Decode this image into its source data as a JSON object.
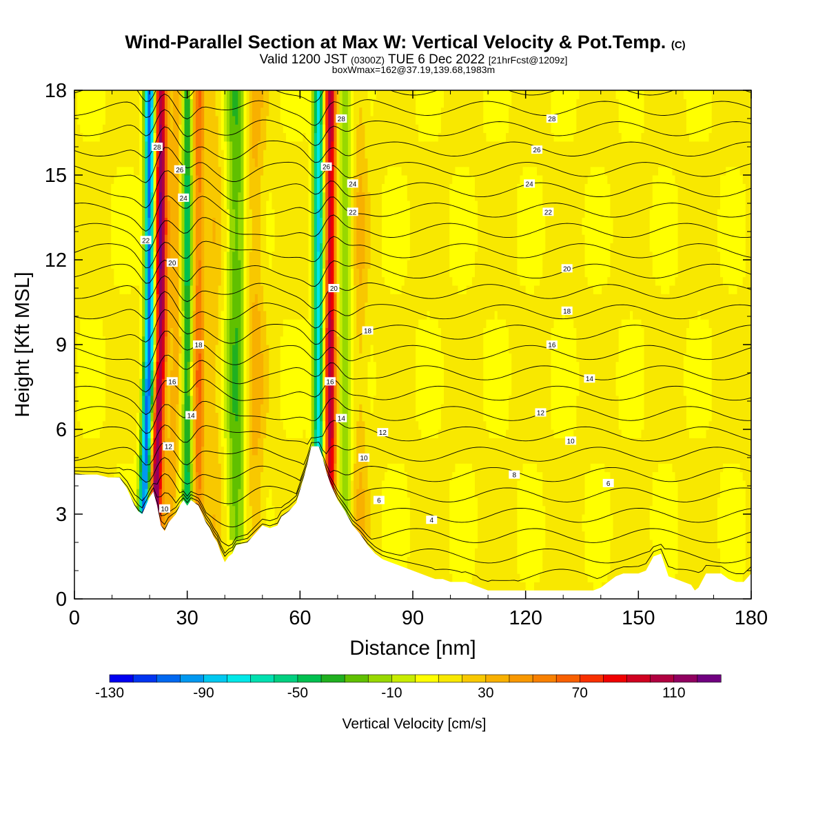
{
  "chart_data": {
    "type": "heatmap",
    "title": "Wind-Parallel Section at Max W: Vertical Velocity & Pot.Temp.",
    "title_mark": "(C)",
    "subtitle": {
      "valid_prefix": "Valid 1200 JST",
      "utc": "(0300Z)",
      "valid_date": "TUE 6 Dec 2022",
      "forecast": "[21hrFcst@1209z]"
    },
    "box_info": "boxWmax=162@37.19,139.68,1983m",
    "xlabel": "Distance [nm]",
    "ylabel": "Height [Kft MSL]",
    "xlim": [
      0,
      180
    ],
    "ylim": [
      0,
      18
    ],
    "x_ticks": [
      "0",
      "30",
      "60",
      "90",
      "120",
      "150",
      "180"
    ],
    "y_ticks": [
      "0",
      "3",
      "6",
      "9",
      "12",
      "15",
      "18"
    ],
    "colorbar": {
      "label": "Vertical Velocity [cm/s]",
      "range": [
        -130,
        130
      ],
      "ticks": [
        "-130",
        "-90",
        "-50",
        "-10",
        "30",
        "70",
        "110"
      ],
      "colors": [
        "#0000f0",
        "#0034f0",
        "#0068f0",
        "#0098f0",
        "#00c8f0",
        "#00e8e8",
        "#00e0b0",
        "#00d080",
        "#00c050",
        "#20b020",
        "#60c000",
        "#98d800",
        "#c8ec00",
        "#ffff00",
        "#f8e800",
        "#f8c800",
        "#f8b000",
        "#f89800",
        "#f88000",
        "#f86000",
        "#f83000",
        "#f00000",
        "#d00020",
        "#b00040",
        "#900060",
        "#700080"
      ]
    },
    "terrain": [
      [
        0,
        4.4
      ],
      [
        6,
        4.4
      ],
      [
        9,
        4.3
      ],
      [
        12,
        4.3
      ],
      [
        13,
        4.1
      ],
      [
        14,
        3.9
      ],
      [
        15,
        3.6
      ],
      [
        16,
        3.3
      ],
      [
        17,
        3.1
      ],
      [
        18,
        3.0
      ],
      [
        19,
        3.3
      ],
      [
        20,
        3.6
      ],
      [
        21,
        3.8
      ],
      [
        22,
        3.3
      ],
      [
        23,
        2.6
      ],
      [
        24,
        2.4
      ],
      [
        25,
        2.7
      ],
      [
        27,
        3.0
      ],
      [
        28,
        3.3
      ],
      [
        29,
        3.5
      ],
      [
        30,
        3.3
      ],
      [
        31,
        3.5
      ],
      [
        33,
        3.3
      ],
      [
        34,
        3.0
      ],
      [
        35,
        2.7
      ],
      [
        36,
        2.5
      ],
      [
        37,
        2.2
      ],
      [
        38,
        2.0
      ],
      [
        39,
        1.6
      ],
      [
        40,
        1.3
      ],
      [
        41,
        1.5
      ],
      [
        42,
        1.6
      ],
      [
        43,
        1.9
      ],
      [
        46,
        2.0
      ],
      [
        48,
        2.3
      ],
      [
        50,
        2.6
      ],
      [
        52,
        2.5
      ],
      [
        54,
        2.6
      ],
      [
        55,
        2.9
      ],
      [
        57,
        3.1
      ],
      [
        59,
        3.4
      ],
      [
        61,
        4.3
      ],
      [
        62,
        4.8
      ],
      [
        63,
        5.4
      ],
      [
        65,
        5.4
      ],
      [
        66,
        5.0
      ],
      [
        67,
        4.5
      ],
      [
        68,
        4.1
      ],
      [
        69,
        3.8
      ],
      [
        70,
        3.5
      ],
      [
        72,
        3.1
      ],
      [
        74,
        2.6
      ],
      [
        76,
        2.3
      ],
      [
        78,
        1.9
      ],
      [
        80,
        1.6
      ],
      [
        82,
        1.4
      ],
      [
        84,
        1.3
      ],
      [
        86,
        1.2
      ],
      [
        88,
        1.1
      ],
      [
        90,
        1.0
      ],
      [
        92,
        0.9
      ],
      [
        94,
        0.8
      ],
      [
        96,
        0.7
      ],
      [
        98,
        0.7
      ],
      [
        100,
        0.6
      ],
      [
        104,
        0.6
      ],
      [
        106,
        0.5
      ],
      [
        108,
        0.4
      ],
      [
        110,
        0.3
      ],
      [
        130,
        0.3
      ],
      [
        138,
        0.3
      ],
      [
        140,
        0.4
      ],
      [
        142,
        0.6
      ],
      [
        144,
        0.8
      ],
      [
        146,
        0.9
      ],
      [
        148,
        0.9
      ],
      [
        150,
        0.9
      ],
      [
        152,
        1.0
      ],
      [
        154,
        1.5
      ],
      [
        156,
        1.6
      ],
      [
        157,
        1.2
      ],
      [
        158,
        0.8
      ],
      [
        160,
        0.7
      ],
      [
        162,
        0.6
      ],
      [
        164,
        0.5
      ],
      [
        165,
        0.3
      ],
      [
        166,
        0.4
      ],
      [
        168,
        0.9
      ],
      [
        172,
        0.9
      ],
      [
        174,
        0.7
      ],
      [
        176,
        0.6
      ],
      [
        178,
        0.6
      ],
      [
        180,
        0.9
      ]
    ],
    "wave_columns": [
      {
        "x": 20,
        "width": 1.4,
        "w": -120
      },
      {
        "x": 23,
        "width": 1.6,
        "w": 105
      },
      {
        "x": 27,
        "width": 1.6,
        "w": 25
      },
      {
        "x": 30,
        "width": 1.4,
        "w": -55
      },
      {
        "x": 33,
        "width": 1.5,
        "w": 45
      },
      {
        "x": 37,
        "width": 2.0,
        "w": 15
      },
      {
        "x": 43,
        "width": 2.5,
        "w": -40
      },
      {
        "x": 48,
        "width": 2.5,
        "w": 20
      },
      {
        "x": 65,
        "width": 1.5,
        "w": -90
      },
      {
        "x": 68,
        "width": 1.6,
        "w": 90
      },
      {
        "x": 72,
        "width": 1.8,
        "w": -30
      },
      {
        "x": 76,
        "width": 2.0,
        "w": 15
      }
    ],
    "background_w": 12,
    "isentrope_labels": [
      {
        "text": "28",
        "x": 22,
        "y": 16.0
      },
      {
        "text": "26",
        "x": 28,
        "y": 15.2
      },
      {
        "text": "24",
        "x": 29,
        "y": 14.2
      },
      {
        "text": "22",
        "x": 19,
        "y": 12.7
      },
      {
        "text": "20",
        "x": 26,
        "y": 11.9
      },
      {
        "text": "18",
        "x": 33,
        "y": 9.0
      },
      {
        "text": "16",
        "x": 26,
        "y": 7.7
      },
      {
        "text": "14",
        "x": 31,
        "y": 6.5
      },
      {
        "text": "12",
        "x": 25,
        "y": 5.4
      },
      {
        "text": "10",
        "x": 24,
        "y": 3.2
      },
      {
        "text": "28",
        "x": 71,
        "y": 17.0
      },
      {
        "text": "26",
        "x": 67,
        "y": 15.3
      },
      {
        "text": "24",
        "x": 74,
        "y": 14.7
      },
      {
        "text": "22",
        "x": 74,
        "y": 13.7
      },
      {
        "text": "20",
        "x": 69,
        "y": 11.0
      },
      {
        "text": "18",
        "x": 78,
        "y": 9.5
      },
      {
        "text": "16",
        "x": 68,
        "y": 7.7
      },
      {
        "text": "14",
        "x": 71,
        "y": 6.4
      },
      {
        "text": "12",
        "x": 82,
        "y": 5.9
      },
      {
        "text": "10",
        "x": 77,
        "y": 5.0
      },
      {
        "text": "6",
        "x": 81,
        "y": 3.5
      },
      {
        "text": "4",
        "x": 95,
        "y": 2.8
      },
      {
        "text": "28",
        "x": 127,
        "y": 17.0
      },
      {
        "text": "26",
        "x": 123,
        "y": 15.9
      },
      {
        "text": "24",
        "x": 121,
        "y": 14.7
      },
      {
        "text": "22",
        "x": 126,
        "y": 13.7
      },
      {
        "text": "20",
        "x": 131,
        "y": 11.7
      },
      {
        "text": "18",
        "x": 131,
        "y": 10.2
      },
      {
        "text": "16",
        "x": 127,
        "y": 9.0
      },
      {
        "text": "14",
        "x": 137,
        "y": 7.8
      },
      {
        "text": "12",
        "x": 124,
        "y": 6.6
      },
      {
        "text": "10",
        "x": 132,
        "y": 5.6
      },
      {
        "text": "8",
        "x": 117,
        "y": 4.4
      },
      {
        "text": "6",
        "x": 142,
        "y": 4.1
      }
    ]
  }
}
